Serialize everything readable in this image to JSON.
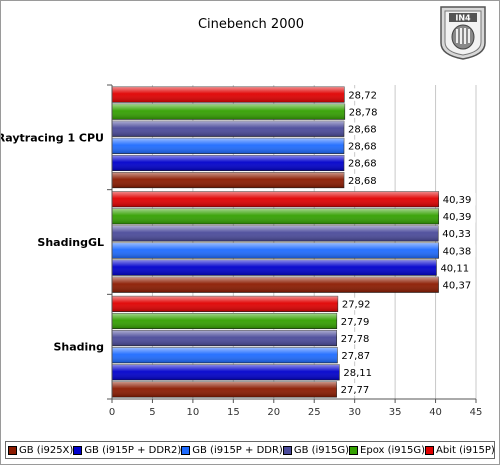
{
  "chart_data": {
    "type": "bar",
    "orientation": "horizontal",
    "title": "Cinebench 2000",
    "categories": [
      "Raytracing 1 CPU",
      "ShadingGL",
      "Shading"
    ],
    "series": [
      {
        "name": "GB (i925X)",
        "color": "#8b1a00",
        "values": [
          28.68,
          40.37,
          27.77
        ]
      },
      {
        "name": "GB (i915P + DDR2)",
        "color": "#0000cc",
        "values": [
          28.68,
          40.11,
          28.11
        ]
      },
      {
        "name": "GB (i915P + DDR)",
        "color": "#1e6bff",
        "values": [
          28.68,
          40.38,
          27.87
        ]
      },
      {
        "name": "GB (i915G)",
        "color": "#4a4a9a",
        "values": [
          28.68,
          40.33,
          27.78
        ]
      },
      {
        "name": "Epox (i915G)",
        "color": "#33a000",
        "values": [
          28.78,
          40.39,
          27.79
        ]
      },
      {
        "name": "Abit (i915P)",
        "color": "#e00000",
        "values": [
          28.72,
          40.39,
          27.92
        ]
      }
    ],
    "value_labels": [
      [
        "28,68",
        "40,37",
        "27,77"
      ],
      [
        "28,68",
        "40,11",
        "28,11"
      ],
      [
        "28,68",
        "40,38",
        "27,87"
      ],
      [
        "28,68",
        "40,33",
        "27,78"
      ],
      [
        "28,78",
        "40,39",
        "27,79"
      ],
      [
        "28,72",
        "40,39",
        "27,92"
      ]
    ],
    "xlim": [
      0,
      45
    ],
    "xticks": [
      "0",
      "5",
      "10",
      "15",
      "20",
      "25",
      "30",
      "35",
      "40",
      "45"
    ],
    "grid": true,
    "legend_position": "bottom"
  },
  "logo": {
    "text": "IN4"
  }
}
